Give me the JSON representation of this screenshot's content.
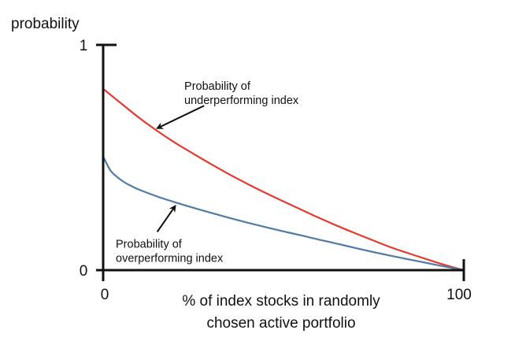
{
  "chart_data": {
    "type": "line",
    "ylabel": "probability",
    "xlabel_lines": [
      "% of index stocks in randomly",
      "chosen active portfolio"
    ],
    "x_ticks": [
      {
        "value": 0,
        "label": "0"
      },
      {
        "value": 100,
        "label": "100"
      }
    ],
    "y_ticks": [
      {
        "value": 0,
        "label": "0"
      },
      {
        "value": 1,
        "label": "1"
      }
    ],
    "xlim": [
      0,
      100
    ],
    "ylim": [
      0,
      1
    ],
    "grid": false,
    "legend": "none",
    "series": [
      {
        "color": "#e8392f",
        "points": [
          [
            0,
            0.805
          ],
          [
            5,
            0.74
          ],
          [
            10,
            0.676
          ],
          [
            15,
            0.618
          ],
          [
            20,
            0.565
          ],
          [
            25,
            0.517
          ],
          [
            30,
            0.47
          ],
          [
            35,
            0.425
          ],
          [
            40,
            0.383
          ],
          [
            45,
            0.343
          ],
          [
            50,
            0.305
          ],
          [
            55,
            0.268
          ],
          [
            60,
            0.231
          ],
          [
            65,
            0.196
          ],
          [
            70,
            0.163
          ],
          [
            75,
            0.131
          ],
          [
            80,
            0.1
          ],
          [
            85,
            0.073
          ],
          [
            90,
            0.047
          ],
          [
            95,
            0.022
          ],
          [
            100,
            0.0
          ]
        ]
      },
      {
        "color": "#4f7ba6",
        "points": [
          [
            0,
            0.505
          ],
          [
            2,
            0.443
          ],
          [
            4,
            0.412
          ],
          [
            6,
            0.389
          ],
          [
            8,
            0.372
          ],
          [
            10,
            0.357
          ],
          [
            15,
            0.327
          ],
          [
            20,
            0.301
          ],
          [
            25,
            0.277
          ],
          [
            30,
            0.254
          ],
          [
            35,
            0.232
          ],
          [
            40,
            0.211
          ],
          [
            45,
            0.191
          ],
          [
            50,
            0.172
          ],
          [
            55,
            0.154
          ],
          [
            60,
            0.135
          ],
          [
            65,
            0.117
          ],
          [
            70,
            0.098
          ],
          [
            75,
            0.08
          ],
          [
            80,
            0.063
          ],
          [
            85,
            0.047
          ],
          [
            90,
            0.031
          ],
          [
            95,
            0.015
          ],
          [
            100,
            0.0
          ]
        ]
      }
    ],
    "annotations": [
      {
        "lines": [
          "Probability of",
          "underperforming index"
        ],
        "arrow_from": [
          28,
          0.73
        ],
        "arrow_to": [
          15,
          0.63
        ],
        "text_at": [
          22.5,
          0.8
        ]
      },
      {
        "lines": [
          "Probability of",
          "overperforming index"
        ],
        "arrow_from": [
          15,
          0.17
        ],
        "arrow_to": [
          20,
          0.285
        ],
        "text_at": [
          3.5,
          0.1
        ]
      }
    ]
  }
}
